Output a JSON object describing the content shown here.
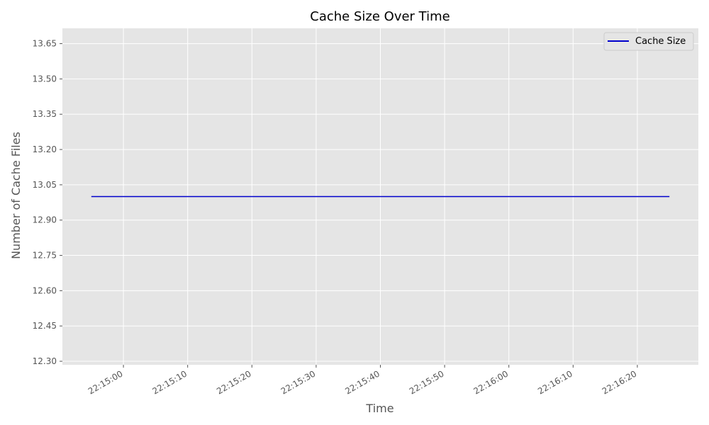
{
  "chart_data": {
    "type": "line",
    "title": "Cache Size Over Time",
    "xlabel": "Time",
    "ylabel": "Number of Cache Files",
    "x": [
      "22:14:55",
      "22:16:25"
    ],
    "series": [
      {
        "name": "Cache Size",
        "color": "#0000cc",
        "values": [
          13,
          13
        ]
      }
    ],
    "xticks": [
      "22:15:00",
      "22:15:10",
      "22:15:20",
      "22:15:30",
      "22:15:40",
      "22:15:50",
      "22:16:00",
      "22:16:10",
      "22:16:20"
    ],
    "yticks": [
      "12.30",
      "12.45",
      "12.60",
      "12.75",
      "12.90",
      "13.05",
      "13.20",
      "13.35",
      "13.50",
      "13.65"
    ],
    "xlim": [
      "22:14:50.5",
      "22:16:29.5"
    ],
    "ylim": [
      12.285,
      13.715
    ],
    "grid": true,
    "legend_position": "top-right",
    "colors": {
      "plot_background": "#e5e5e5",
      "grid": "#ffffff"
    }
  }
}
